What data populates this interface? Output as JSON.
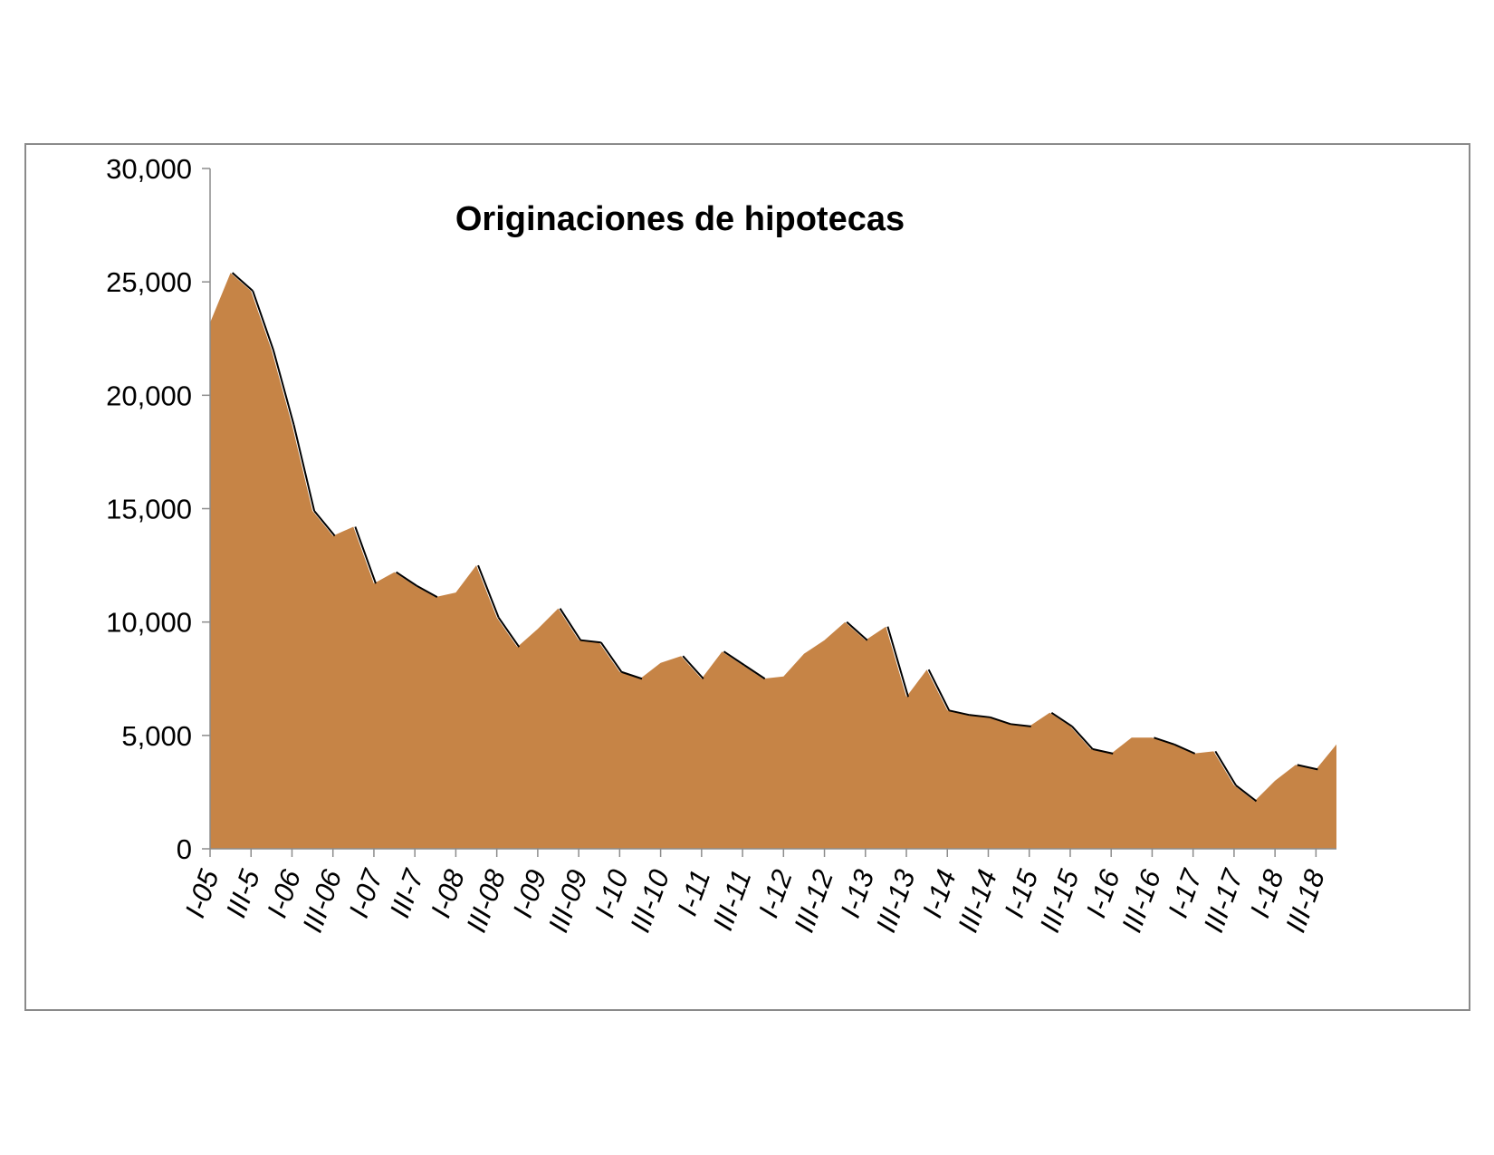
{
  "chart_data": {
    "type": "area",
    "title": "Originaciones de hipotecas",
    "xlabel": "",
    "ylabel": "",
    "ylim": [
      0,
      30000
    ],
    "yticks": [
      0,
      5000,
      10000,
      15000,
      20000,
      25000,
      30000
    ],
    "ytick_labels": [
      "0",
      "5,000",
      "10,000",
      "15,000",
      "20,000",
      "25,000",
      "30,000"
    ],
    "grid": false,
    "legend": "none",
    "fill_color": "#c68446",
    "edge_color": "#000000",
    "x_labels": [
      "I-05",
      "III-5",
      "I-06",
      "III-06",
      "I-07",
      "III-7",
      "I-08",
      "III-08",
      "I-09",
      "III-09",
      "I-10",
      "III-10",
      "I-11",
      "III-11",
      "I-12",
      "III-12",
      "I-13",
      "III-13",
      "I-14",
      "III-14",
      "I-15",
      "III-15",
      "I-16",
      "III-16",
      "I-17",
      "III-17",
      "I-18",
      "III-18"
    ],
    "values": [
      23200,
      25400,
      24600,
      22000,
      18700,
      14900,
      13800,
      14200,
      11700,
      12200,
      11600,
      11100,
      11300,
      12500,
      10200,
      8900,
      9700,
      10600,
      9200,
      9100,
      7800,
      7500,
      8200,
      8500,
      7500,
      8700,
      8100,
      7500,
      7600,
      8600,
      9200,
      10000,
      9200,
      9800,
      6700,
      7900,
      6100,
      5900,
      5800,
      5500,
      5400,
      6000,
      5400,
      4400,
      4200,
      4900,
      4900,
      4600,
      4200,
      4300,
      2800,
      2100,
      3000,
      3700,
      3500,
      4600
    ]
  }
}
